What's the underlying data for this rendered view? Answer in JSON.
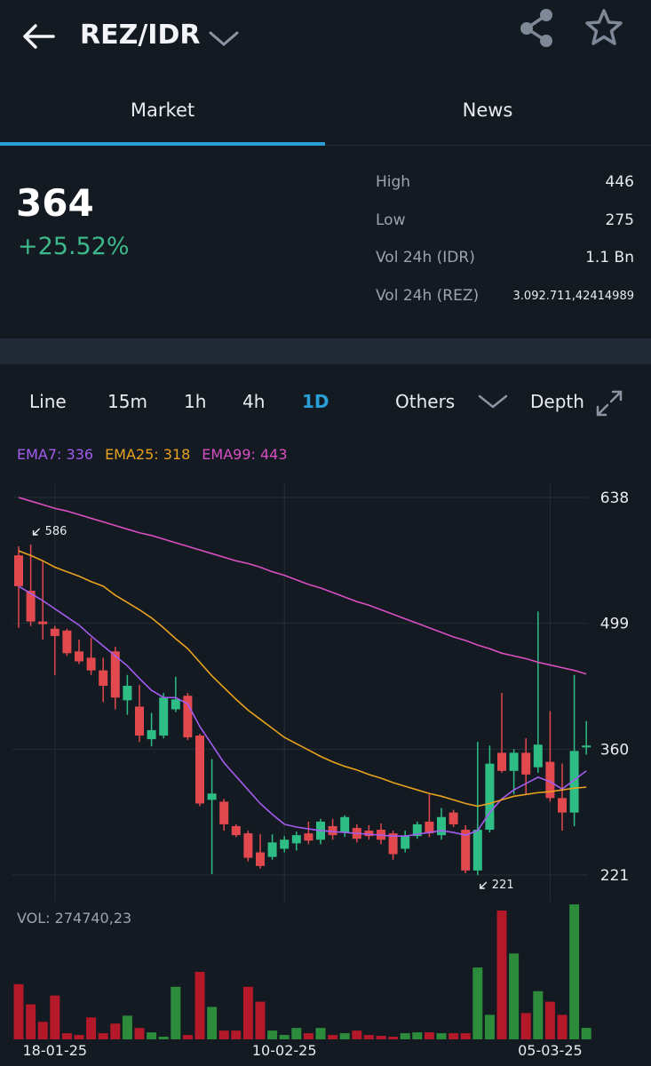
{
  "header": {
    "pair": "REZ/IDR"
  },
  "tabs": [
    "Market",
    "News"
  ],
  "price": {
    "last": "364",
    "change": "+25.52%"
  },
  "stats": [
    {
      "label": "High",
      "value": "446"
    },
    {
      "label": "Low",
      "value": "275"
    },
    {
      "label": "Vol 24h (IDR)",
      "value": "1.1 Bn"
    },
    {
      "label": "Vol 24h (REZ)",
      "value": "3.092.711,42414989"
    }
  ],
  "intervals": [
    "Line",
    "15m",
    "1h",
    "4h",
    "1D",
    "Others",
    "Depth"
  ],
  "active_interval": "1D",
  "chart_data": {
    "type": "candlestick",
    "categories": [
      null,
      null,
      null,
      "18-01-25",
      null,
      null,
      null,
      null,
      null,
      null,
      null,
      null,
      null,
      null,
      null,
      null,
      null,
      null,
      null,
      null,
      null,
      null,
      "10-02-25",
      null,
      null,
      null,
      null,
      null,
      null,
      null,
      null,
      null,
      null,
      null,
      null,
      null,
      null,
      null,
      null,
      null,
      null,
      null,
      null,
      null,
      "05-03-25",
      null,
      null,
      null
    ],
    "open": [
      574,
      535,
      501,
      493,
      491,
      468,
      461,
      447,
      468,
      414,
      407,
      371,
      375,
      404,
      419,
      375,
      304,
      302,
      275,
      267,
      246,
      241,
      250,
      256,
      267,
      260,
      275,
      268,
      273,
      270,
      271,
      267,
      250,
      264,
      280,
      265,
      290,
      271,
      226,
      271,
      356,
      336,
      356,
      340,
      346,
      306,
      290,
      362
    ],
    "high": [
      584,
      586,
      567,
      496,
      493,
      481,
      483,
      461,
      473,
      442,
      431,
      400,
      422,
      440,
      422,
      377,
      349,
      305,
      277,
      270,
      266,
      266,
      264,
      269,
      280,
      283,
      283,
      287,
      277,
      276,
      278,
      270,
      270,
      280,
      310,
      295,
      293,
      276,
      368,
      364,
      422,
      360,
      372,
      512,
      402,
      344,
      442,
      391
    ],
    "low": [
      494,
      496,
      481,
      442,
      463,
      454,
      442,
      412,
      404,
      398,
      368,
      363,
      372,
      401,
      370,
      297,
      222,
      270,
      263,
      236,
      228,
      238,
      246,
      248,
      255,
      255,
      260,
      263,
      257,
      260,
      255,
      238,
      246,
      261,
      263,
      260,
      274,
      223,
      221,
      268,
      334,
      310,
      310,
      334,
      302,
      270,
      275,
      354
    ],
    "close": [
      540,
      501,
      498,
      485,
      466,
      457,
      447,
      430,
      417,
      430,
      375,
      381,
      417,
      415,
      373,
      300,
      311,
      277,
      265,
      240,
      231,
      257,
      260,
      265,
      259,
      280,
      265,
      285,
      261,
      264,
      260,
      244,
      264,
      277,
      267,
      285,
      277,
      226,
      271,
      344,
      336,
      356,
      332,
      365,
      306,
      290,
      358,
      364
    ],
    "up_color": "#2ebd85",
    "down_color": "#e2494f",
    "series": [
      {
        "name": "EMA7: 336",
        "color": "#a45cf0",
        "values": [
          540,
          532,
          524,
          515,
          506,
          497,
          485,
          474,
          463,
          452,
          438,
          425,
          417,
          417,
          410,
          385,
          365,
          345,
          330,
          315,
          300,
          288,
          277,
          274,
          272,
          270,
          269,
          268,
          267,
          266,
          265,
          264,
          264,
          266,
          268,
          270,
          268,
          265,
          270,
          290,
          305,
          315,
          322,
          329,
          324,
          316,
          326,
          336
        ]
      },
      {
        "name": "EMA25: 318",
        "color": "#e8a21e",
        "values": [
          579,
          574,
          568,
          561,
          556,
          551,
          545,
          540,
          530,
          522,
          514,
          505,
          494,
          482,
          471,
          456,
          441,
          428,
          415,
          403,
          393,
          383,
          373,
          366,
          359,
          352,
          346,
          341,
          337,
          332,
          328,
          323,
          319,
          315,
          311,
          308,
          304,
          300,
          297,
          300,
          304,
          308,
          310,
          312,
          313,
          315,
          317,
          318
        ]
      },
      {
        "name": "EMA99: 443",
        "color": "#d94fc2",
        "values": [
          638,
          634,
          630,
          626,
          623,
          619,
          615,
          611,
          607,
          603,
          599,
          596,
          592,
          588,
          584,
          580,
          576,
          572,
          568,
          565,
          561,
          556,
          552,
          547,
          542,
          538,
          533,
          528,
          523,
          519,
          514,
          509,
          504,
          499,
          494,
          489,
          484,
          480,
          475,
          471,
          466,
          463,
          460,
          456,
          453,
          450,
          447,
          443
        ]
      }
    ],
    "ylim": [
      221,
      638
    ],
    "yticks": [
      638,
      499,
      360,
      221
    ],
    "grid": true,
    "annotations": [
      {
        "text": "586",
        "value": 586,
        "of": "high"
      },
      {
        "text": "221",
        "value": 221,
        "of": "low"
      }
    ],
    "volume_label": "VOL: 274740,23",
    "volume": [
      1323000,
      840000,
      420000,
      1050000,
      147000,
      105000,
      525000,
      147000,
      378000,
      567000,
      273000,
      168000,
      63000,
      1260000,
      105000,
      1617000,
      777000,
      210000,
      210000,
      1260000,
      903000,
      210000,
      105000,
      273000,
      147000,
      273000,
      105000,
      147000,
      210000,
      105000,
      84000,
      63000,
      147000,
      168000,
      168000,
      147000,
      147000,
      147000,
      1722000,
      588000,
      3087000,
      2058000,
      630000,
      1155000,
      903000,
      588000,
      3234000,
      274740.23
    ],
    "volume_lim": [
      0,
      3300000
    ],
    "volume_up_color": "#2c8c3c",
    "volume_down_color": "#b4192a"
  }
}
